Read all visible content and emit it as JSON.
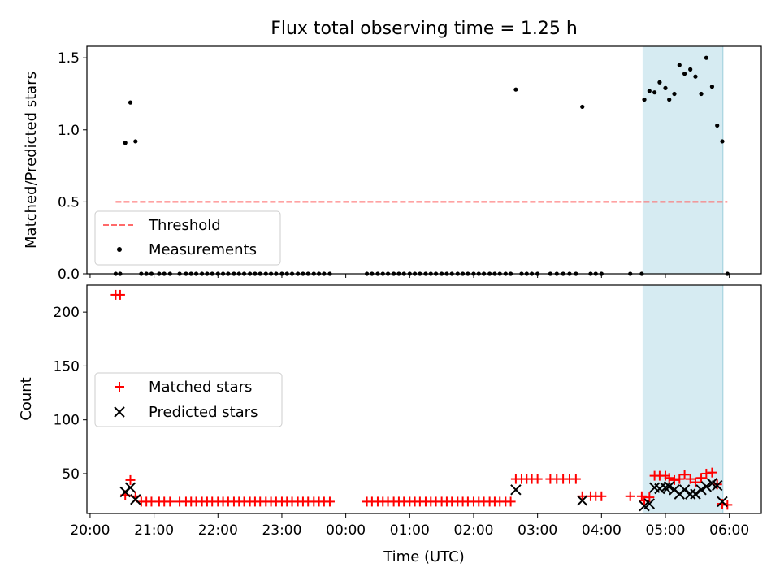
{
  "title": "Flux total observing time = 1.25 h",
  "chart_data": [
    {
      "type": "scatter",
      "ylabel": "Matched/Predicted stars",
      "xlim_hours": [
        19.95,
        30.5
      ],
      "ylim": [
        0,
        1.58
      ],
      "yticks": [
        0.0,
        0.5,
        1.0,
        1.5
      ],
      "ytick_labels": [
        "0.0",
        "0.5",
        "1.0",
        "1.5"
      ],
      "xtick_labels": [],
      "highlight_span_hours": [
        28.65,
        29.9
      ],
      "highlight_color": "#add8e6",
      "threshold": {
        "name": "Threshold",
        "y": 0.5,
        "x_hours": [
          20.4,
          29.97
        ],
        "color": "#ff6a6a"
      },
      "legend": {
        "location": "lower-left",
        "entries": [
          "Threshold",
          "Measurements"
        ]
      },
      "series": [
        {
          "name": "Measurements",
          "marker": "dot",
          "color": "#000000",
          "points": [
            [
              20.4,
              0
            ],
            [
              20.47,
              0
            ],
            [
              20.55,
              0.91
            ],
            [
              20.63,
              1.19
            ],
            [
              20.71,
              0.92
            ],
            [
              20.8,
              0
            ],
            [
              20.88,
              0
            ],
            [
              20.96,
              0
            ],
            [
              21.08,
              0
            ],
            [
              21.16,
              0
            ],
            [
              21.25,
              0
            ],
            [
              21.4,
              0
            ],
            [
              21.5,
              0
            ],
            [
              21.58,
              0
            ],
            [
              21.66,
              0
            ],
            [
              21.75,
              0
            ],
            [
              21.83,
              0
            ],
            [
              21.91,
              0
            ],
            [
              22.0,
              0
            ],
            [
              22.08,
              0
            ],
            [
              22.16,
              0
            ],
            [
              22.25,
              0
            ],
            [
              22.33,
              0
            ],
            [
              22.41,
              0
            ],
            [
              22.5,
              0
            ],
            [
              22.58,
              0
            ],
            [
              22.66,
              0
            ],
            [
              22.75,
              0
            ],
            [
              22.83,
              0
            ],
            [
              22.91,
              0
            ],
            [
              23.0,
              0
            ],
            [
              23.08,
              0
            ],
            [
              23.16,
              0
            ],
            [
              23.25,
              0
            ],
            [
              23.33,
              0
            ],
            [
              23.41,
              0
            ],
            [
              23.5,
              0
            ],
            [
              23.58,
              0
            ],
            [
              23.66,
              0
            ],
            [
              23.75,
              0
            ],
            [
              24.33,
              0
            ],
            [
              24.41,
              0
            ],
            [
              24.5,
              0
            ],
            [
              24.58,
              0
            ],
            [
              24.66,
              0
            ],
            [
              24.75,
              0
            ],
            [
              24.83,
              0
            ],
            [
              24.91,
              0
            ],
            [
              25.0,
              0
            ],
            [
              25.08,
              0
            ],
            [
              25.16,
              0
            ],
            [
              25.25,
              0
            ],
            [
              25.33,
              0
            ],
            [
              25.41,
              0
            ],
            [
              25.5,
              0
            ],
            [
              25.58,
              0
            ],
            [
              25.66,
              0
            ],
            [
              25.75,
              0
            ],
            [
              25.83,
              0
            ],
            [
              25.91,
              0
            ],
            [
              26.0,
              0
            ],
            [
              26.08,
              0
            ],
            [
              26.16,
              0
            ],
            [
              26.25,
              0
            ],
            [
              26.33,
              0
            ],
            [
              26.41,
              0
            ],
            [
              26.5,
              0
            ],
            [
              26.58,
              0
            ],
            [
              26.66,
              1.28
            ],
            [
              26.75,
              0
            ],
            [
              26.83,
              0
            ],
            [
              26.91,
              0
            ],
            [
              27.0,
              0
            ],
            [
              27.2,
              0
            ],
            [
              27.3,
              0
            ],
            [
              27.4,
              0
            ],
            [
              27.5,
              0
            ],
            [
              27.6,
              0
            ],
            [
              27.7,
              1.16
            ],
            [
              27.83,
              0
            ],
            [
              27.91,
              0
            ],
            [
              28.0,
              0
            ],
            [
              28.45,
              0
            ],
            [
              28.63,
              0
            ],
            [
              28.67,
              1.21
            ],
            [
              28.75,
              1.27
            ],
            [
              28.83,
              1.26
            ],
            [
              28.91,
              1.33
            ],
            [
              29.0,
              1.29
            ],
            [
              29.06,
              1.21
            ],
            [
              29.14,
              1.25
            ],
            [
              29.22,
              1.45
            ],
            [
              29.3,
              1.39
            ],
            [
              29.39,
              1.42
            ],
            [
              29.47,
              1.37
            ],
            [
              29.56,
              1.25
            ],
            [
              29.64,
              1.5
            ],
            [
              29.73,
              1.3
            ],
            [
              29.81,
              1.03
            ],
            [
              29.89,
              0.92
            ],
            [
              29.97,
              0
            ]
          ]
        }
      ]
    },
    {
      "type": "scatter",
      "xlabel": "Time (UTC)",
      "ylabel": "Count",
      "xlim_hours": [
        19.95,
        30.5
      ],
      "ylim": [
        13,
        225
      ],
      "yticks": [
        50,
        100,
        150,
        200
      ],
      "ytick_labels": [
        "50",
        "100",
        "150",
        "200"
      ],
      "xticks_hours": [
        20,
        21,
        22,
        23,
        24,
        25,
        26,
        27,
        28,
        29,
        30
      ],
      "xtick_labels": [
        "20:00",
        "21:00",
        "22:00",
        "23:00",
        "00:00",
        "01:00",
        "02:00",
        "03:00",
        "04:00",
        "05:00",
        "06:00"
      ],
      "highlight_span_hours": [
        28.65,
        29.9
      ],
      "highlight_color": "#add8e6",
      "legend": {
        "location": "center-left",
        "entries": [
          "Matched stars",
          "Predicted stars"
        ]
      },
      "series": [
        {
          "name": "Matched stars",
          "marker": "plus",
          "color": "#ff0000",
          "points": [
            [
              20.4,
              216
            ],
            [
              20.47,
              216
            ],
            [
              20.55,
              30
            ],
            [
              20.63,
              44
            ],
            [
              20.71,
              29
            ],
            [
              20.8,
              24
            ],
            [
              20.88,
              24
            ],
            [
              20.96,
              24
            ],
            [
              21.08,
              24
            ],
            [
              21.16,
              24
            ],
            [
              21.25,
              24
            ],
            [
              21.4,
              24
            ],
            [
              21.5,
              24
            ],
            [
              21.58,
              24
            ],
            [
              21.66,
              24
            ],
            [
              21.75,
              24
            ],
            [
              21.83,
              24
            ],
            [
              21.91,
              24
            ],
            [
              22.0,
              24
            ],
            [
              22.08,
              24
            ],
            [
              22.16,
              24
            ],
            [
              22.25,
              24
            ],
            [
              22.33,
              24
            ],
            [
              22.41,
              24
            ],
            [
              22.5,
              24
            ],
            [
              22.58,
              24
            ],
            [
              22.66,
              24
            ],
            [
              22.75,
              24
            ],
            [
              22.83,
              24
            ],
            [
              22.91,
              24
            ],
            [
              23.0,
              24
            ],
            [
              23.08,
              24
            ],
            [
              23.16,
              24
            ],
            [
              23.25,
              24
            ],
            [
              23.33,
              24
            ],
            [
              23.41,
              24
            ],
            [
              23.5,
              24
            ],
            [
              23.58,
              24
            ],
            [
              23.66,
              24
            ],
            [
              23.75,
              24
            ],
            [
              24.33,
              24
            ],
            [
              24.41,
              24
            ],
            [
              24.5,
              24
            ],
            [
              24.58,
              24
            ],
            [
              24.66,
              24
            ],
            [
              24.75,
              24
            ],
            [
              24.83,
              24
            ],
            [
              24.91,
              24
            ],
            [
              25.0,
              24
            ],
            [
              25.08,
              24
            ],
            [
              25.16,
              24
            ],
            [
              25.25,
              24
            ],
            [
              25.33,
              24
            ],
            [
              25.41,
              24
            ],
            [
              25.5,
              24
            ],
            [
              25.58,
              24
            ],
            [
              25.66,
              24
            ],
            [
              25.75,
              24
            ],
            [
              25.83,
              24
            ],
            [
              25.91,
              24
            ],
            [
              26.0,
              24
            ],
            [
              26.08,
              24
            ],
            [
              26.16,
              24
            ],
            [
              26.25,
              24
            ],
            [
              26.33,
              24
            ],
            [
              26.41,
              24
            ],
            [
              26.5,
              24
            ],
            [
              26.58,
              24
            ],
            [
              26.66,
              45
            ],
            [
              26.75,
              45
            ],
            [
              26.83,
              45
            ],
            [
              26.91,
              45
            ],
            [
              27.0,
              45
            ],
            [
              27.2,
              45
            ],
            [
              27.3,
              45
            ],
            [
              27.4,
              45
            ],
            [
              27.5,
              45
            ],
            [
              27.6,
              45
            ],
            [
              27.7,
              29
            ],
            [
              27.83,
              29
            ],
            [
              27.91,
              29
            ],
            [
              28.0,
              29
            ],
            [
              28.45,
              29
            ],
            [
              28.63,
              29
            ],
            [
              28.67,
              25
            ],
            [
              28.75,
              28
            ],
            [
              28.83,
              48
            ],
            [
              28.91,
              48
            ],
            [
              29.0,
              48
            ],
            [
              29.06,
              46
            ],
            [
              29.14,
              44
            ],
            [
              29.22,
              45
            ],
            [
              29.3,
              49
            ],
            [
              29.39,
              45
            ],
            [
              29.47,
              42
            ],
            [
              29.56,
              46
            ],
            [
              29.64,
              50
            ],
            [
              29.73,
              51
            ],
            [
              29.81,
              40
            ],
            [
              29.89,
              22
            ],
            [
              29.97,
              21
            ]
          ]
        },
        {
          "name": "Predicted stars",
          "marker": "x",
          "color": "#000000",
          "points": [
            [
              20.55,
              33
            ],
            [
              20.63,
              37
            ],
            [
              20.71,
              26
            ],
            [
              26.66,
              35
            ],
            [
              27.7,
              25
            ],
            [
              28.67,
              20
            ],
            [
              28.75,
              22
            ],
            [
              28.83,
              37
            ],
            [
              28.91,
              36
            ],
            [
              29.0,
              37
            ],
            [
              29.06,
              38
            ],
            [
              29.14,
              35
            ],
            [
              29.22,
              31
            ],
            [
              29.3,
              35
            ],
            [
              29.39,
              31
            ],
            [
              29.47,
              31
            ],
            [
              29.56,
              35
            ],
            [
              29.64,
              38
            ],
            [
              29.73,
              41
            ],
            [
              29.81,
              39
            ],
            [
              29.89,
              24
            ]
          ]
        }
      ]
    }
  ]
}
